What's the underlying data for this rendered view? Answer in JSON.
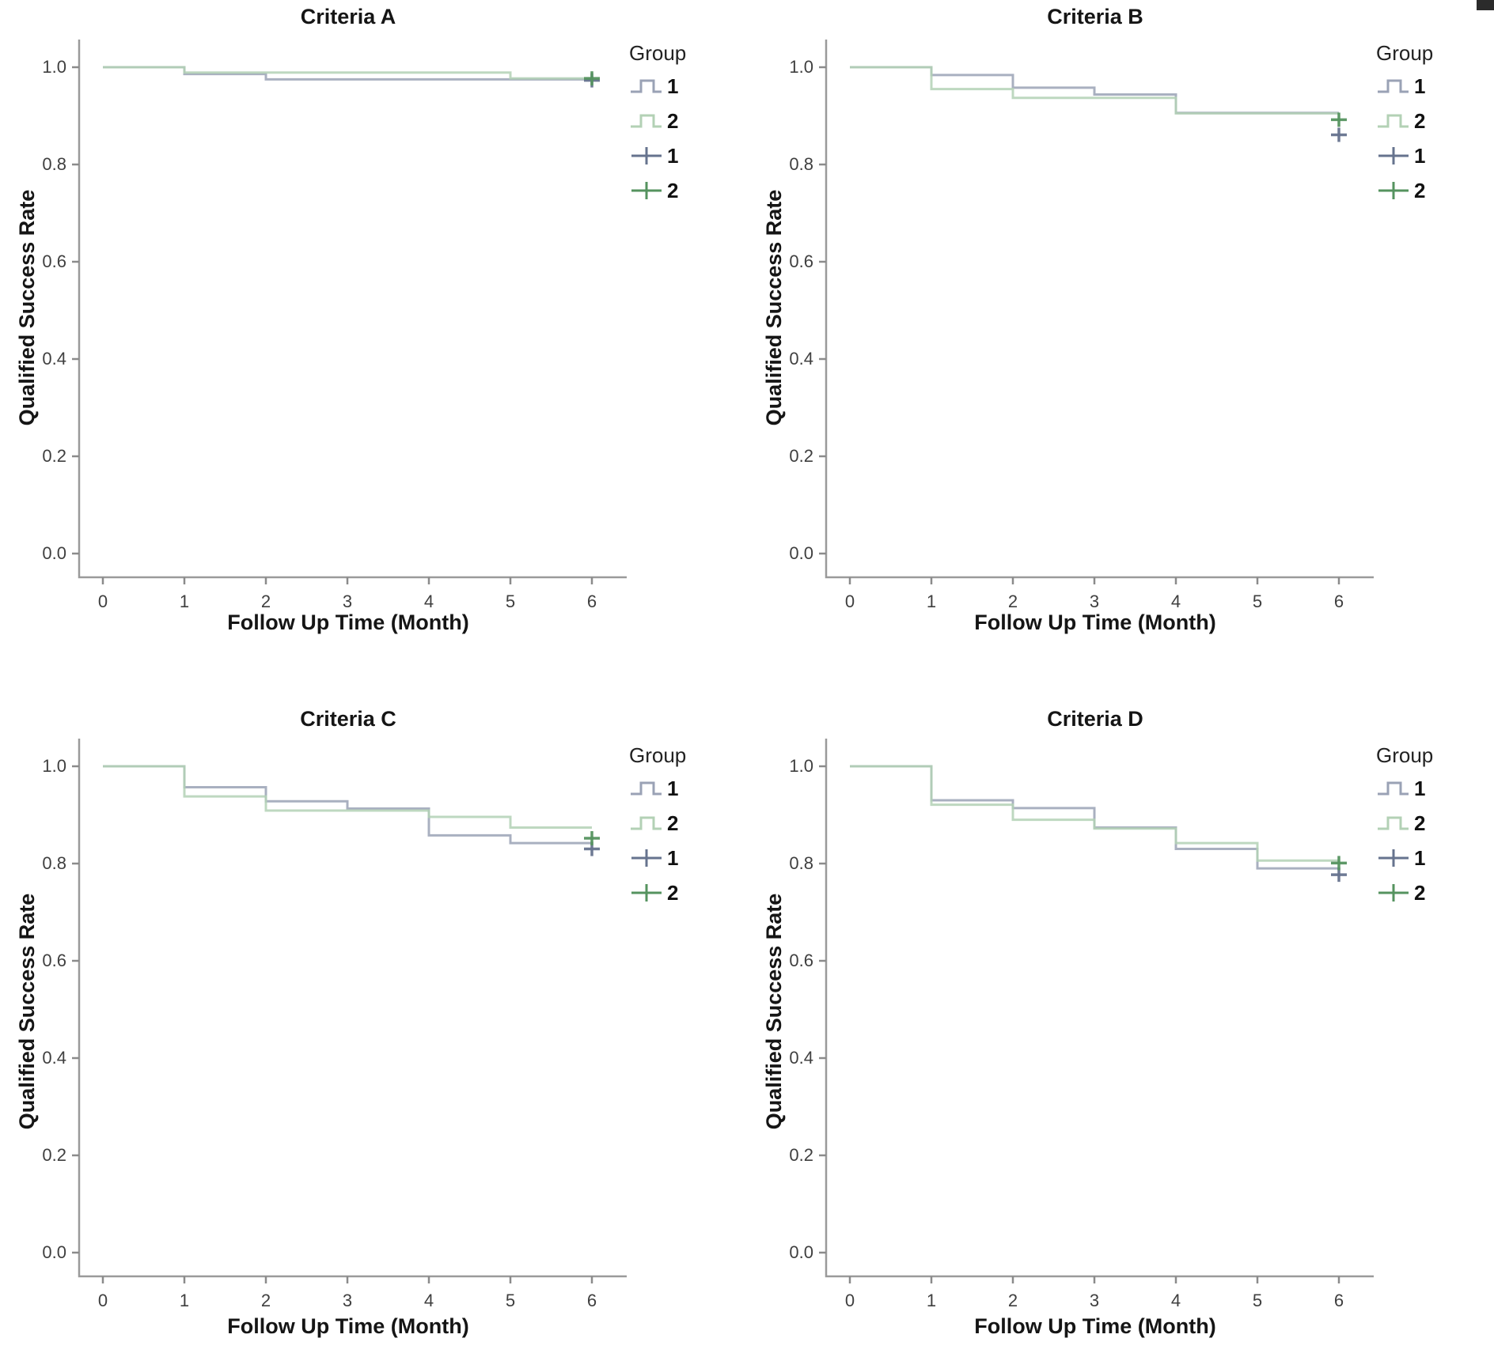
{
  "figure": {
    "description": "Kaplan-Meier qualified success rate curves, four criteria panels",
    "background": "#ffffff"
  },
  "colors": {
    "group1_line": "#9aa2b5",
    "group2_line": "#b3d1b5",
    "group1_censor": "#66738e",
    "group2_censor": "#55935f",
    "axis": "#9a9a9a",
    "text": "#151515"
  },
  "axes": {
    "ylabel": "Qualified Success Rate",
    "xlabel": "Follow Up Time (Month)",
    "y_ticks": [
      "1.0",
      "0.8",
      "0.6",
      "0.4",
      "0.2",
      "0.0"
    ],
    "x_ticks": [
      "0",
      "1",
      "2",
      "3",
      "4",
      "5",
      "6"
    ]
  },
  "legend": {
    "title": "Group",
    "items": [
      {
        "label": "1",
        "symbol": "step-line",
        "color_key": "group1_line"
      },
      {
        "label": "2",
        "symbol": "step-line",
        "color_key": "group2_line"
      },
      {
        "label": "1",
        "symbol": "plus-censored",
        "color_key": "group1_censor"
      },
      {
        "label": "2",
        "symbol": "plus-censored",
        "color_key": "group2_censor"
      }
    ]
  },
  "chart_data": [
    {
      "type": "line",
      "title": "Criteria A",
      "xlabel": "Follow Up Time (Month)",
      "ylabel": "Qualified Success Rate",
      "x_range": [
        0,
        6
      ],
      "y_range": [
        0.0,
        1.0
      ],
      "legend_position": "right-top",
      "series": [
        {
          "name": "Group 1",
          "color_key": "group1_line",
          "step_points": [
            [
              0,
              1.0
            ],
            [
              1,
              0.986
            ],
            [
              2,
              0.975
            ]
          ],
          "end_x": 6
        },
        {
          "name": "Group 2",
          "color_key": "group2_line",
          "step_points": [
            [
              0,
              1.0
            ],
            [
              1,
              0.989
            ],
            [
              5,
              0.977
            ]
          ],
          "end_x": 6
        }
      ],
      "censored": [
        {
          "group": "1",
          "x": 6,
          "y": 0.973,
          "color_key": "group1_censor"
        },
        {
          "group": "2",
          "x": 6,
          "y": 0.977,
          "color_key": "group2_censor"
        }
      ]
    },
    {
      "type": "line",
      "title": "Criteria B",
      "xlabel": "Follow Up Time (Month)",
      "ylabel": "Qualified Success Rate",
      "x_range": [
        0,
        6
      ],
      "y_range": [
        0.0,
        1.0
      ],
      "legend_position": "right-top",
      "series": [
        {
          "name": "Group 1",
          "color_key": "group1_line",
          "step_points": [
            [
              0,
              1.0
            ],
            [
              1,
              0.984
            ],
            [
              2,
              0.958
            ],
            [
              3,
              0.944
            ],
            [
              4,
              0.906
            ]
          ],
          "end_x": 6
        },
        {
          "name": "Group 2",
          "color_key": "group2_line",
          "step_points": [
            [
              0,
              1.0
            ],
            [
              1,
              0.955
            ],
            [
              2,
              0.937
            ],
            [
              4,
              0.905
            ]
          ],
          "end_x": 6
        }
      ],
      "censored": [
        {
          "group": "1",
          "x": 6,
          "y": 0.861,
          "color_key": "group1_censor"
        },
        {
          "group": "2",
          "x": 6,
          "y": 0.892,
          "color_key": "group2_censor"
        }
      ]
    },
    {
      "type": "line",
      "title": "Criteria C",
      "xlabel": "Follow Up Time (Month)",
      "ylabel": "Qualified Success Rate",
      "x_range": [
        0,
        6
      ],
      "y_range": [
        0.0,
        1.0
      ],
      "legend_position": "right-top",
      "series": [
        {
          "name": "Group 1",
          "color_key": "group1_line",
          "step_points": [
            [
              0,
              1.0
            ],
            [
              1,
              0.957
            ],
            [
              2,
              0.928
            ],
            [
              3,
              0.913
            ],
            [
              4,
              0.858
            ],
            [
              5,
              0.842
            ]
          ],
          "end_x": 6
        },
        {
          "name": "Group 2",
          "color_key": "group2_line",
          "step_points": [
            [
              0,
              1.0
            ],
            [
              1,
              0.938
            ],
            [
              2,
              0.909
            ],
            [
              4,
              0.896
            ],
            [
              5,
              0.874
            ]
          ],
          "end_x": 6
        }
      ],
      "censored": [
        {
          "group": "1",
          "x": 6,
          "y": 0.83,
          "color_key": "group1_censor"
        },
        {
          "group": "2",
          "x": 6,
          "y": 0.852,
          "color_key": "group2_censor"
        }
      ]
    },
    {
      "type": "line",
      "title": "Criteria D",
      "xlabel": "Follow Up Time (Month)",
      "ylabel": "Qualified Success Rate",
      "x_range": [
        0,
        6
      ],
      "y_range": [
        0.0,
        1.0
      ],
      "legend_position": "right-top",
      "series": [
        {
          "name": "Group 1",
          "color_key": "group1_line",
          "step_points": [
            [
              0,
              1.0
            ],
            [
              1,
              0.93
            ],
            [
              2,
              0.914
            ],
            [
              3,
              0.874
            ],
            [
              4,
              0.83
            ],
            [
              5,
              0.79
            ]
          ],
          "end_x": 6
        },
        {
          "name": "Group 2",
          "color_key": "group2_line",
          "step_points": [
            [
              0,
              1.0
            ],
            [
              1,
              0.921
            ],
            [
              2,
              0.89
            ],
            [
              3,
              0.872
            ],
            [
              4,
              0.842
            ],
            [
              5,
              0.806
            ]
          ],
          "end_x": 6
        }
      ],
      "censored": [
        {
          "group": "1",
          "x": 6,
          "y": 0.777,
          "color_key": "group1_censor"
        },
        {
          "group": "2",
          "x": 6,
          "y": 0.801,
          "color_key": "group2_censor"
        }
      ]
    }
  ]
}
